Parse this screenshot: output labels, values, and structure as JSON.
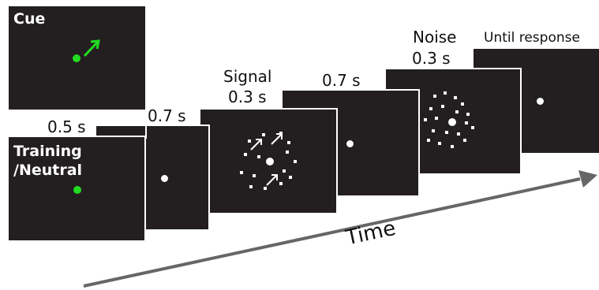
{
  "cue": {
    "title": "Cue",
    "dot_color": "#22dd22",
    "arrow_color": "#22dd22",
    "icon": "arrow-up-right-icon"
  },
  "training": {
    "title_line1": "Training",
    "title_line2": "/Neutral",
    "dot_color": "#22dd22"
  },
  "stages": [
    {
      "duration": "0.5 s"
    },
    {
      "duration": "0.7 s"
    },
    {
      "name": "Signal",
      "duration": "0.3 s"
    },
    {
      "duration": "0.7 s"
    },
    {
      "name": "Noise",
      "duration": "0.3 s"
    },
    {
      "name": "Until response"
    }
  ],
  "time_label": "Time",
  "colors": {
    "screen": "#231f20",
    "fixation": "#ffffff",
    "arrow": "#666666"
  }
}
